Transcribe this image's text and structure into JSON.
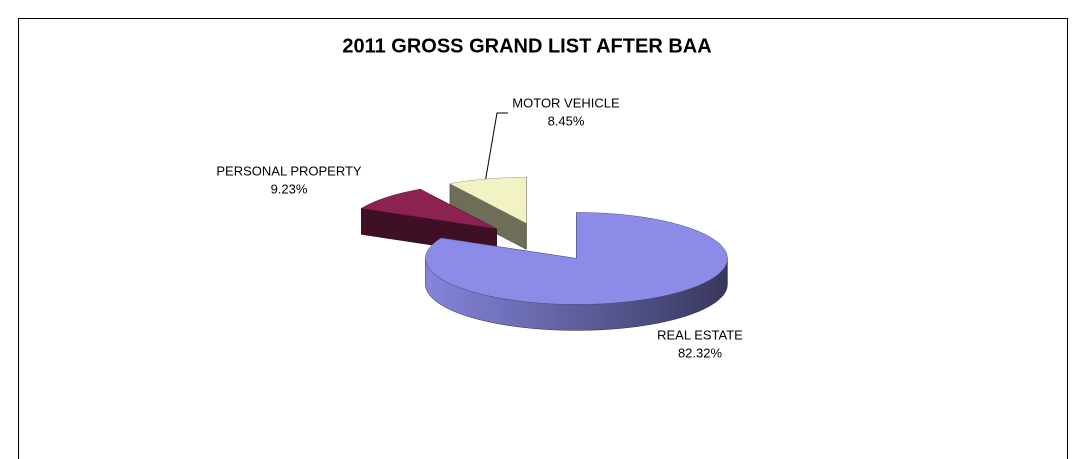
{
  "chart_data": {
    "type": "pie",
    "title": "2011 GROSS GRAND LIST AFTER BAA",
    "categories": [
      "REAL ESTATE",
      "PERSONAL PROPERTY",
      "MOTOR VEHICLE"
    ],
    "values": [
      82.32,
      9.23,
      8.45
    ],
    "value_labels": [
      "82.32%",
      "9.23%",
      "8.45%"
    ],
    "colors": [
      "#8c8ce8",
      "#8b2252",
      "#f2f2c4"
    ]
  }
}
